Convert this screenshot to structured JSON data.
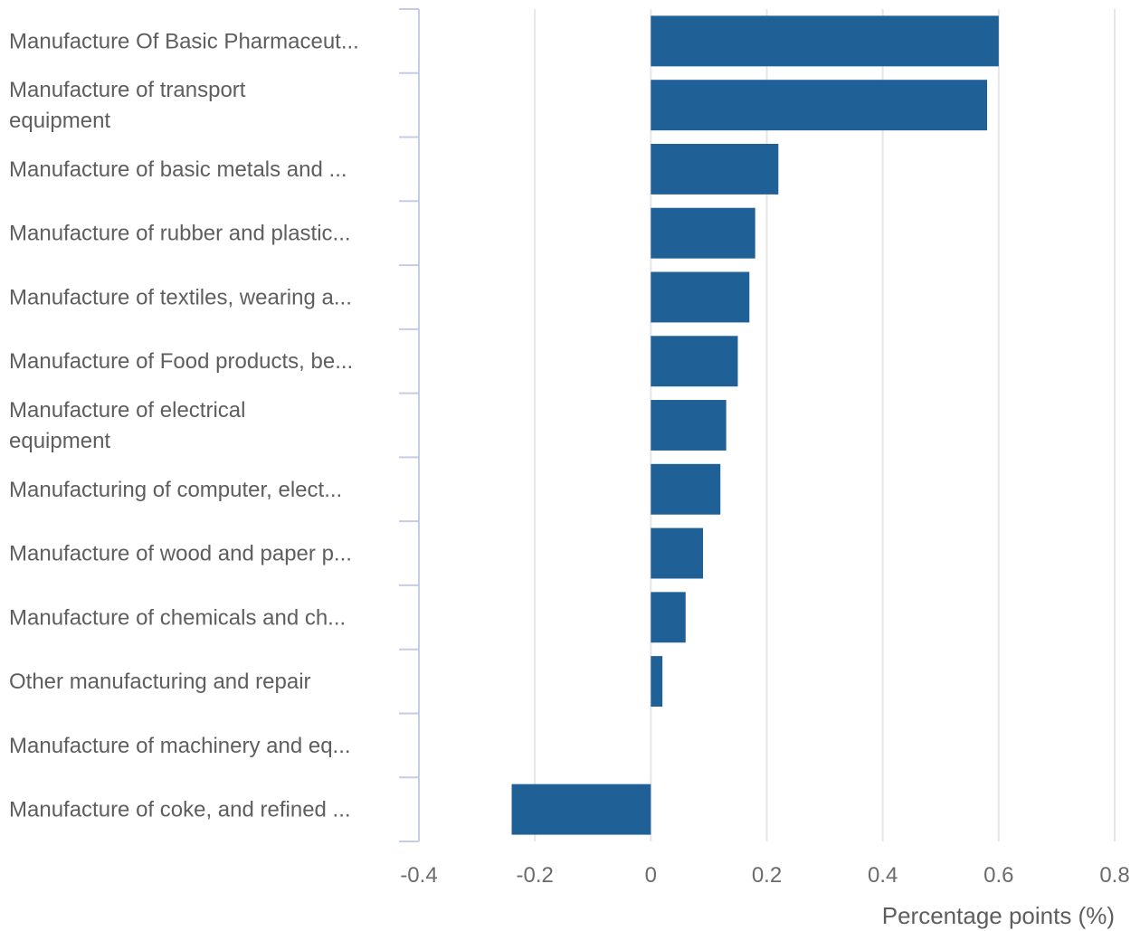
{
  "chart_data": {
    "type": "bar",
    "orientation": "horizontal",
    "categories": [
      [
        "Manufacture Of Basic Pharmaceut..."
      ],
      [
        "Manufacture of transport",
        "equipment"
      ],
      [
        "Manufacture of basic metals and ..."
      ],
      [
        "Manufacture of rubber and plastic..."
      ],
      [
        "Manufacture of textiles, wearing a..."
      ],
      [
        "Manufacture of Food products, be..."
      ],
      [
        "Manufacture of electrical",
        "equipment"
      ],
      [
        "Manufacturing of computer, elect..."
      ],
      [
        "Manufacture of wood and paper p..."
      ],
      [
        "Manufacture of chemicals and ch..."
      ],
      [
        "Other manufacturing and repair"
      ],
      [
        "Manufacture of machinery and eq..."
      ],
      [
        "Manufacture of coke, and refined ..."
      ]
    ],
    "values": [
      0.6,
      0.58,
      0.22,
      0.18,
      0.17,
      0.15,
      0.13,
      0.12,
      0.09,
      0.06,
      0.02,
      0.0,
      -0.24
    ],
    "xlim": [
      -0.4,
      0.8
    ],
    "xticks": [
      "-0.4",
      "-0.2",
      "0",
      "0.2",
      "0.4",
      "0.6",
      "0.8"
    ],
    "xlabel": "Percentage points (%)",
    "ylabel": "",
    "title": "",
    "grid": "vertical",
    "legend": "none",
    "colors": {
      "bar": "#1f6096",
      "grid": "#e6e6e6",
      "axis": "#c5cde6",
      "label": "#5e5e5e",
      "tick": "#6b6b6b"
    }
  }
}
